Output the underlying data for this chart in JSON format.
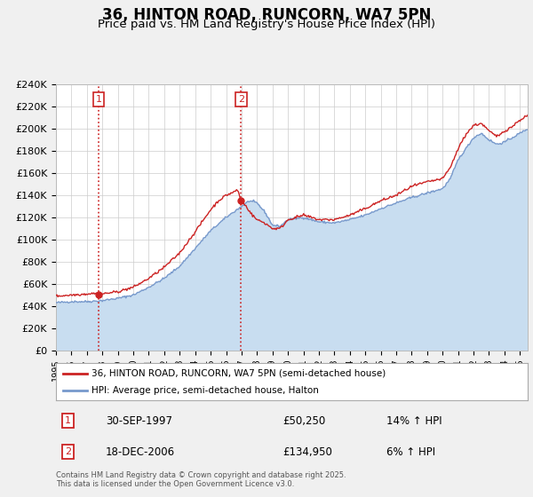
{
  "title": "36, HINTON ROAD, RUNCORN, WA7 5PN",
  "subtitle": "Price paid vs. HM Land Registry's House Price Index (HPI)",
  "ylim": [
    0,
    240000
  ],
  "xlim_start": 1995.0,
  "xlim_end": 2025.5,
  "sale1_date": 1997.75,
  "sale1_price": 50250,
  "sale2_date": 2006.96,
  "sale2_price": 134950,
  "red_line_color": "#cc2222",
  "blue_line_color": "#7799cc",
  "blue_fill_color": "#c8ddf0",
  "dashed_color": "#cc2222",
  "background_color": "#f0f0f0",
  "plot_bg_color": "#ffffff",
  "legend_label_red": "36, HINTON ROAD, RUNCORN, WA7 5PN (semi-detached house)",
  "legend_label_blue": "HPI: Average price, semi-detached house, Halton",
  "footer": "Contains HM Land Registry data © Crown copyright and database right 2025.\nThis data is licensed under the Open Government Licence v3.0.",
  "sale_box_color": "#cc2222",
  "hpi_waypoints_x": [
    1995,
    1996,
    1997,
    1998,
    1999,
    2000,
    2001,
    2002,
    2003,
    2004,
    2005,
    2006,
    2007,
    2007.5,
    2008,
    2008.5,
    2009,
    2009.5,
    2010,
    2011,
    2012,
    2013,
    2014,
    2015,
    2016,
    2017,
    2018,
    2019,
    2020,
    2020.5,
    2021,
    2021.5,
    2022,
    2022.5,
    2023,
    2023.5,
    2024,
    2024.5,
    2025.5
  ],
  "hpi_waypoints_y": [
    43000,
    44000,
    44000,
    45000,
    47000,
    50000,
    57000,
    65000,
    76000,
    92000,
    108000,
    120000,
    130000,
    135000,
    133000,
    125000,
    113000,
    112000,
    118000,
    120000,
    116000,
    115000,
    118000,
    122000,
    128000,
    133000,
    138000,
    142000,
    146000,
    155000,
    172000,
    182000,
    192000,
    196000,
    190000,
    186000,
    188000,
    192000,
    200000
  ],
  "red_waypoints_x": [
    1995,
    1996,
    1997,
    1997.5,
    1997.75,
    1998,
    1999,
    2000,
    2001,
    2002,
    2003,
    2004,
    2005,
    2005.5,
    2006,
    2006.5,
    2006.75,
    2006.96,
    2007.3,
    2007.7,
    2008,
    2008.5,
    2009,
    2009.5,
    2010,
    2011,
    2012,
    2013,
    2014,
    2015,
    2016,
    2017,
    2018,
    2019,
    2020,
    2020.5,
    2021,
    2021.5,
    2022,
    2022.5,
    2023,
    2023.5,
    2024,
    2024.5,
    2025,
    2025.5
  ],
  "red_waypoints_y": [
    49000,
    50000,
    51000,
    51500,
    50250,
    51000,
    53000,
    57000,
    65000,
    75000,
    88000,
    107000,
    127000,
    135000,
    140000,
    143000,
    145000,
    134950,
    130000,
    122000,
    118000,
    115000,
    110000,
    110000,
    118000,
    122000,
    118000,
    118000,
    122000,
    128000,
    135000,
    140000,
    148000,
    152000,
    155000,
    165000,
    182000,
    195000,
    203000,
    205000,
    198000,
    193000,
    198000,
    202000,
    208000,
    212000
  ]
}
